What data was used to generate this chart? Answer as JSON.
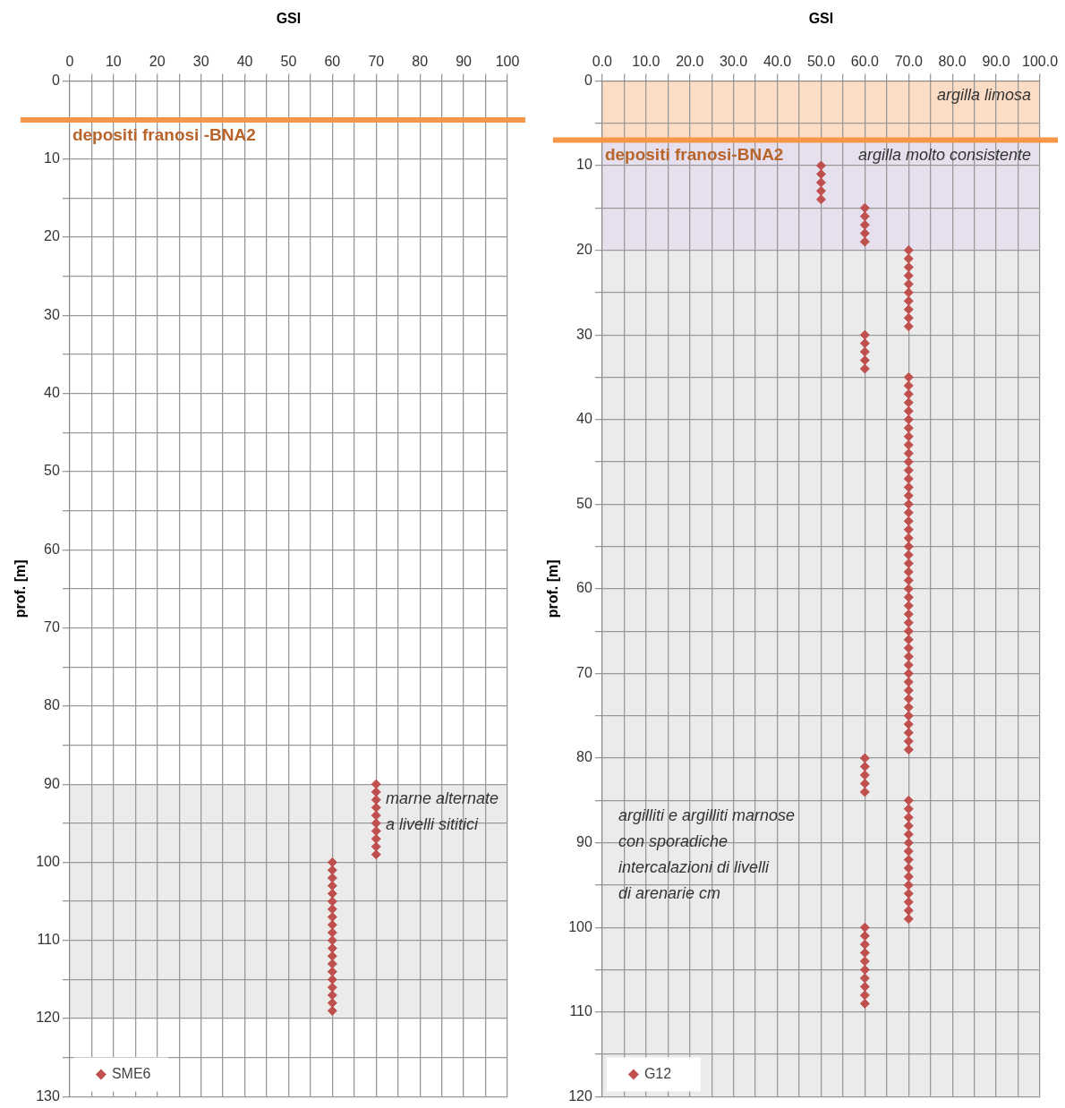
{
  "chart_data": [
    {
      "type": "scatter",
      "xlabel": "GSI",
      "ylabel": "prof. [m]",
      "xlim": [
        0,
        100
      ],
      "xticks": [
        0,
        {
          "value": 5,
          "label": null
        },
        10,
        {
          "value": 15,
          "label": null
        },
        20,
        {
          "value": 25,
          "label": null
        },
        30,
        {
          "value": 35,
          "label": null
        },
        40,
        {
          "value": 45,
          "label": null
        },
        50,
        {
          "value": 55,
          "label": null
        },
        60,
        {
          "value": 65,
          "label": null
        },
        70,
        {
          "value": 75,
          "label": null
        },
        80,
        {
          "value": 85,
          "label": null
        },
        90,
        {
          "value": 95,
          "label": null
        },
        100
      ],
      "ylim": [
        130,
        0
      ],
      "yticks": [
        0,
        {
          "value": 5,
          "label": null
        },
        10,
        {
          "value": 15,
          "label": null
        },
        20,
        {
          "value": 25,
          "label": null
        },
        30,
        {
          "value": 35,
          "label": null
        },
        40,
        {
          "value": 45,
          "label": null
        },
        50,
        {
          "value": 55,
          "label": null
        },
        60,
        {
          "value": 65,
          "label": null
        },
        70,
        {
          "value": 75,
          "label": null
        },
        80,
        {
          "value": 85,
          "label": null
        },
        90,
        {
          "value": 95,
          "label": null
        },
        100,
        {
          "value": 105,
          "label": null
        },
        110,
        {
          "value": 115,
          "label": null
        },
        120,
        {
          "value": 125,
          "label": null
        },
        130
      ],
      "grid": true,
      "legend": "bottom left",
      "marker": "diamond",
      "series": [
        {
          "name": "SME6",
          "color": "#c0504d",
          "x": [
            70,
            70,
            70,
            70,
            70,
            70,
            70,
            70,
            70,
            70,
            60,
            60,
            60,
            60,
            60,
            60,
            60,
            60,
            60,
            60,
            60,
            60,
            60,
            60,
            60,
            60,
            60,
            60,
            60,
            60
          ],
          "values": [
            90,
            91,
            92,
            93,
            94,
            95,
            96,
            97,
            98,
            99,
            100,
            101,
            102,
            103,
            104,
            105,
            106,
            107,
            108,
            109,
            110,
            111,
            112,
            113,
            114,
            115,
            116,
            117,
            118,
            119
          ]
        }
      ],
      "bands": [
        {
          "axis": "y",
          "from": 90,
          "to": 120,
          "color": "#ebebeb",
          "label": "marne alternate\na livelli sititici"
        }
      ],
      "ref_lines": [
        {
          "axis": "y",
          "value": 5,
          "label": "depositi franosi -BNA2",
          "color": "#f79646"
        }
      ]
    },
    {
      "type": "scatter",
      "xlabel": "GSI",
      "ylabel": "prof. [m]",
      "xlim": [
        0,
        100
      ],
      "xticks": [
        {
          "value": 0,
          "label": "0.0"
        },
        {
          "value": 5,
          "label": null
        },
        {
          "value": 10,
          "label": "10.0"
        },
        {
          "value": 15,
          "label": null
        },
        {
          "value": 20,
          "label": "20.0"
        },
        {
          "value": 25,
          "label": null
        },
        {
          "value": 30,
          "label": "30.0"
        },
        {
          "value": 35,
          "label": null
        },
        {
          "value": 40,
          "label": "40.0"
        },
        {
          "value": 45,
          "label": null
        },
        {
          "value": 50,
          "label": "50.0"
        },
        {
          "value": 55,
          "label": null
        },
        {
          "value": 60,
          "label": "60.0"
        },
        {
          "value": 65,
          "label": null
        },
        {
          "value": 70,
          "label": "70.0"
        },
        {
          "value": 75,
          "label": null
        },
        {
          "value": 80,
          "label": "80.0"
        },
        {
          "value": 85,
          "label": null
        },
        {
          "value": 90,
          "label": "90.0"
        },
        {
          "value": 95,
          "label": null
        },
        {
          "value": 100,
          "label": "100.0"
        }
      ],
      "ylim": [
        120,
        0
      ],
      "yticks": [
        0,
        {
          "value": 5,
          "label": null
        },
        10,
        {
          "value": 15,
          "label": null
        },
        20,
        {
          "value": 25,
          "label": null
        },
        30,
        {
          "value": 35,
          "label": null
        },
        40,
        {
          "value": 45,
          "label": null
        },
        50,
        {
          "value": 55,
          "label": null
        },
        60,
        {
          "value": 65,
          "label": null
        },
        70,
        {
          "value": 75,
          "label": null
        },
        80,
        {
          "value": 85,
          "label": null
        },
        90,
        {
          "value": 95,
          "label": null
        },
        100,
        {
          "value": 105,
          "label": null
        },
        110,
        {
          "value": 115,
          "label": null
        },
        120
      ],
      "grid": true,
      "legend": "bottom left",
      "marker": "diamond",
      "series": [
        {
          "name": "G12",
          "color": "#c0504d",
          "x": [
            50,
            50,
            50,
            50,
            50,
            60,
            60,
            60,
            60,
            60,
            70,
            70,
            70,
            70,
            70,
            70,
            70,
            70,
            70,
            70,
            60,
            60,
            60,
            60,
            60,
            70,
            70,
            70,
            70,
            70,
            70,
            70,
            70,
            70,
            70,
            70,
            70,
            70,
            70,
            70,
            70,
            70,
            70,
            70,
            70,
            70,
            70,
            70,
            70,
            70,
            70,
            70,
            70,
            70,
            70,
            70,
            70,
            70,
            70,
            70,
            70,
            70,
            70,
            70,
            70,
            70,
            70,
            70,
            70,
            70,
            60,
            60,
            60,
            60,
            60,
            70,
            70,
            70,
            70,
            70,
            70,
            70,
            70,
            70,
            70,
            70,
            70,
            70,
            70,
            70,
            60,
            60,
            60,
            60,
            60,
            60,
            60,
            60,
            60,
            60
          ],
          "values": [
            10,
            11,
            12,
            13,
            14,
            15,
            16,
            17,
            18,
            19,
            20,
            21,
            22,
            23,
            24,
            25,
            26,
            27,
            28,
            29,
            30,
            31,
            32,
            33,
            34,
            35,
            36,
            37,
            38,
            39,
            40,
            41,
            42,
            43,
            44,
            45,
            46,
            47,
            48,
            49,
            50,
            51,
            52,
            53,
            54,
            55,
            56,
            57,
            58,
            59,
            60,
            61,
            62,
            63,
            64,
            65,
            66,
            67,
            68,
            69,
            70,
            71,
            72,
            73,
            74,
            75,
            76,
            77,
            78,
            79,
            80,
            81,
            82,
            83,
            84,
            85,
            86,
            87,
            88,
            89,
            90,
            91,
            92,
            93,
            94,
            95,
            96,
            97,
            98,
            99,
            100,
            101,
            102,
            103,
            104,
            105,
            106,
            107,
            108,
            109
          ]
        }
      ],
      "bands": [
        {
          "axis": "y",
          "from": 0,
          "to": 7,
          "color": "#fcdcc4",
          "label": "argilla limosa"
        },
        {
          "axis": "y",
          "from": 7,
          "to": 20,
          "color": "#e6e0ee",
          "label": "argilla molto consistente"
        },
        {
          "axis": "y",
          "from": 20,
          "to": 120,
          "color": "#ebebeb",
          "label": "argilliti e argilliti marnose\ncon sporadiche\nintercalazioni di livelli\ndi arenarie cm"
        }
      ],
      "ref_lines": [
        {
          "axis": "y",
          "value": 7,
          "label": "depositi franosi-BNA2",
          "color": "#f79646"
        }
      ]
    }
  ]
}
